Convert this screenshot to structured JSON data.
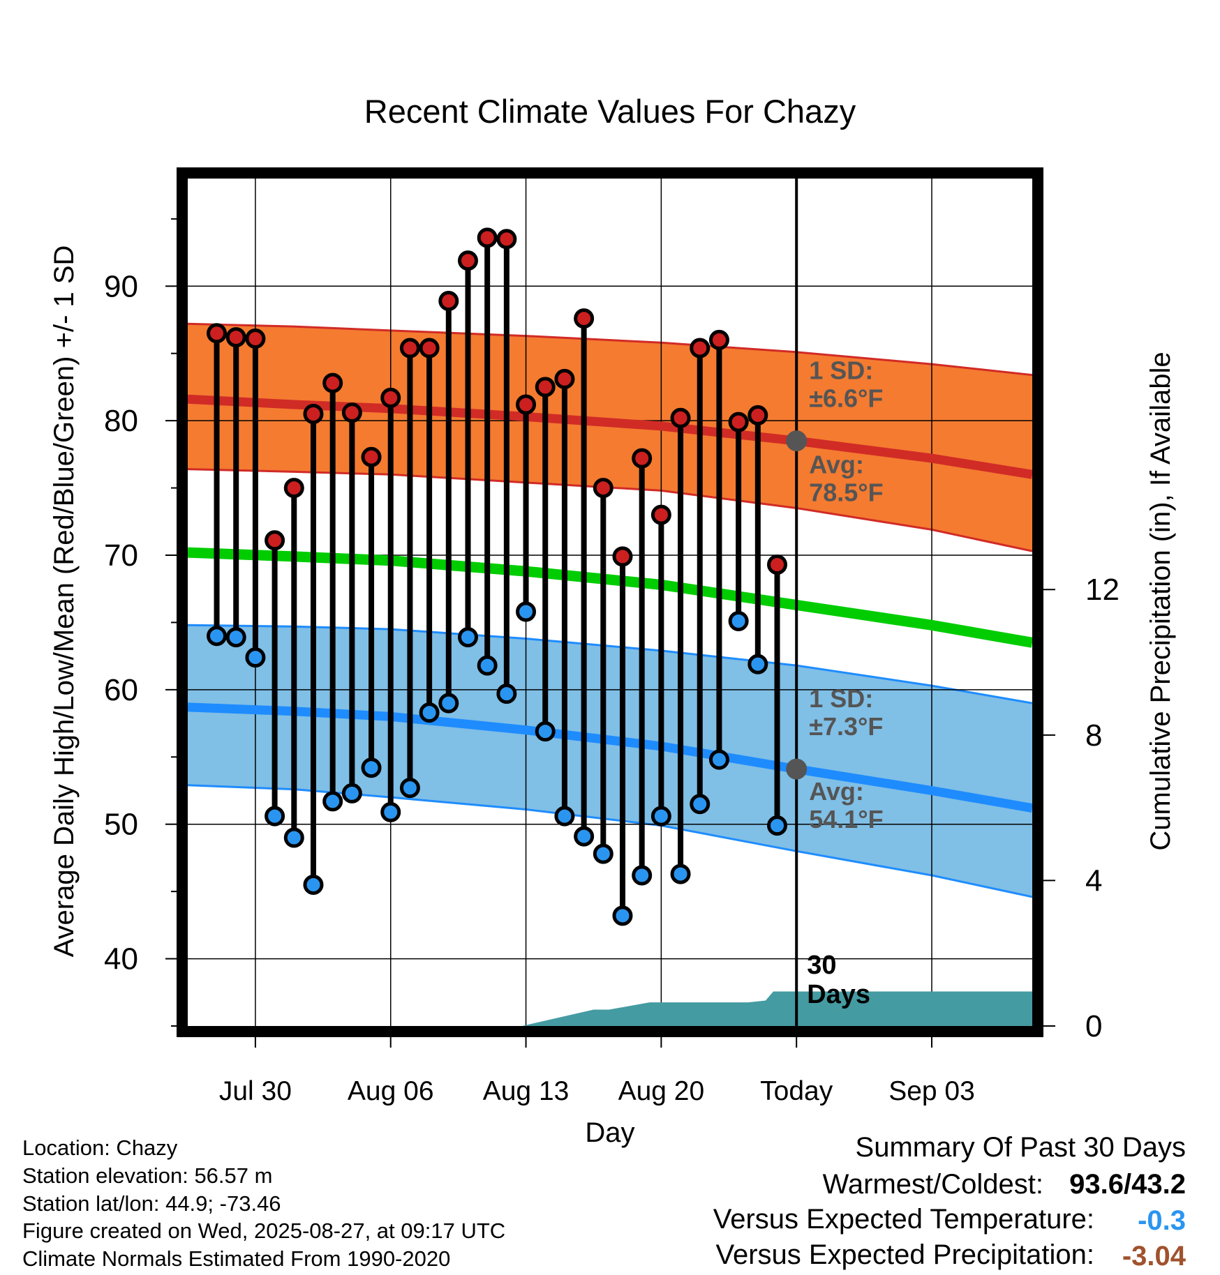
{
  "chart_data": {
    "type": "line",
    "title": "Recent Climate Values For Chazy",
    "xlabel": "Day",
    "ylabel": "Average Daily High/Low/Mean (Red/Blue/Green) +/- 1 SD",
    "y2label": "Cumulative Precipitation (in), If Available",
    "ylim": [
      35,
      98
    ],
    "y2lim": [
      0,
      23.3
    ],
    "yticks": [
      40,
      50,
      60,
      70,
      80,
      90
    ],
    "y2ticks": [
      0,
      4,
      8,
      12
    ],
    "xlim": [
      -3.5,
      40.2
    ],
    "xtick_positions": [
      0,
      7,
      14,
      21,
      28,
      35
    ],
    "xtick_labels": [
      "Jul 30",
      "Aug 06",
      "Aug 13",
      "Aug 20",
      "Today",
      "Sep 03"
    ],
    "today_index": 28,
    "today_label": "30 Days",
    "grid": true,
    "daily": {
      "x": [
        -2,
        -1,
        0,
        1,
        2,
        3,
        4,
        5,
        6,
        7,
        8,
        9,
        10,
        11,
        12,
        13,
        14,
        15,
        16,
        17,
        18,
        19,
        20,
        21,
        22,
        23,
        24,
        25,
        26,
        27
      ],
      "highs": [
        86.5,
        86.2,
        86.1,
        71.1,
        75.0,
        80.5,
        82.8,
        80.6,
        77.3,
        81.7,
        85.4,
        85.4,
        88.9,
        91.9,
        93.6,
        93.5,
        81.2,
        82.5,
        83.1,
        87.6,
        75.0,
        69.9,
        77.2,
        73.0,
        80.2,
        85.4,
        86.0,
        79.9,
        80.4,
        69.3
      ],
      "lows": [
        64.0,
        63.9,
        62.4,
        50.6,
        49.0,
        45.5,
        51.7,
        52.3,
        54.2,
        50.9,
        52.7,
        58.3,
        59.0,
        63.9,
        61.8,
        59.7,
        65.8,
        56.9,
        50.6,
        49.1,
        47.8,
        43.2,
        46.2,
        50.6,
        46.3,
        51.5,
        54.8,
        65.1,
        61.9,
        49.9
      ]
    },
    "normals": {
      "x": [
        -3.5,
        2,
        7,
        14,
        21,
        28,
        35,
        40.2
      ],
      "avg_high": [
        81.6,
        81.2,
        80.9,
        80.3,
        79.6,
        78.5,
        77.2,
        76.0
      ],
      "high_sd_upper": [
        87.2,
        87.0,
        86.7,
        86.3,
        85.8,
        85.1,
        84.2,
        83.4
      ],
      "high_sd_lower": [
        76.4,
        76.2,
        76.0,
        75.4,
        74.8,
        73.5,
        71.9,
        70.3
      ],
      "avg_mean": [
        70.2,
        69.9,
        69.6,
        68.8,
        67.8,
        66.3,
        64.8,
        63.5
      ],
      "avg_low": [
        58.7,
        58.4,
        58.0,
        57.0,
        55.8,
        54.1,
        52.5,
        51.2
      ],
      "low_sd_upper": [
        64.8,
        64.7,
        64.5,
        63.8,
        62.9,
        61.8,
        60.3,
        59.0
      ],
      "low_sd_lower": [
        52.9,
        52.6,
        52.0,
        51.1,
        49.9,
        48.0,
        46.2,
        44.6
      ]
    },
    "precipitation": {
      "x": [
        -3.5,
        10.5,
        13.8,
        17.5,
        18.3,
        20.4,
        22.5,
        24.5,
        25.5,
        26.4,
        26.8,
        40.2
      ],
      "cumulative": [
        0,
        0,
        0,
        0.45,
        0.45,
        0.65,
        0.65,
        0.65,
        0.65,
        0.7,
        0.95,
        0.95
      ]
    },
    "annotations": {
      "high_sd": "1 SD: ±6.6°F",
      "high_avg": "Avg: 78.5°F",
      "low_sd": "1 SD: ±7.3°F",
      "low_avg": "Avg: 54.1°F"
    },
    "colors": {
      "high_band": "#f47b30",
      "high_line": "#d12b26",
      "low_band": "#80bfe6",
      "low_line": "#1e8cff",
      "mean_line": "#00cc00",
      "precip": "#459ba2",
      "high_marker": "#cc1f1f",
      "low_marker": "#2a95f0",
      "today_marker": "#555555",
      "annotation_text": "#555555"
    }
  },
  "footer": {
    "location": "Location: Chazy",
    "elevation": "Station elevation: 56.57 m",
    "latlon": "Station lat/lon: 44.9; -73.46",
    "created": "Figure created on Wed, 2025-08-27, at 09:17 UTC",
    "normals": "Climate Normals Estimated From 1990-2020"
  },
  "summary": {
    "heading": "Summary Of Past 30 Days",
    "warm_cold_label": "Warmest/Coldest:",
    "warm_cold_value": "93.6/43.2",
    "temp_label": "Versus Expected Temperature:",
    "temp_value": "-0.3",
    "temp_color": "#2a95f0",
    "precip_label": "Versus Expected Precipitation:",
    "precip_value": "-3.04",
    "precip_color": "#a0522d"
  }
}
